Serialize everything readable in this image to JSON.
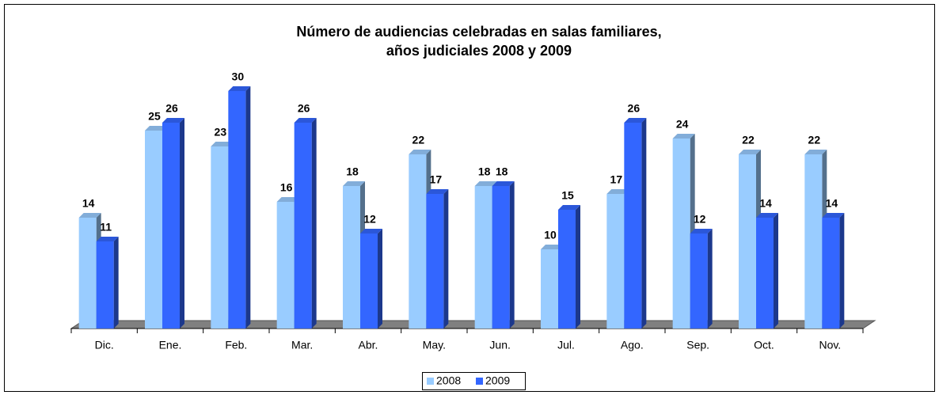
{
  "chart_data": {
    "type": "bar3d",
    "title": "Número de audiencias celebradas en salas familiares,",
    "subtitle": "años judiciales 2008 y 2009",
    "categories": [
      "Dic.",
      "Ene.",
      "Feb.",
      "Mar.",
      "Abr.",
      "May.",
      "Jun.",
      "Jul.",
      "Ago.",
      "Sep.",
      "Oct.",
      "Nov."
    ],
    "series": [
      {
        "name": "2008",
        "color": "#99ccff",
        "values": [
          14,
          25,
          23,
          16,
          18,
          22,
          18,
          10,
          17,
          24,
          22,
          22
        ]
      },
      {
        "name": "2009",
        "color": "#3366ff",
        "values": [
          11,
          26,
          30,
          26,
          12,
          17,
          18,
          15,
          26,
          12,
          14,
          14
        ]
      }
    ],
    "ylim": [
      0,
      30
    ],
    "legend": "bottom"
  }
}
